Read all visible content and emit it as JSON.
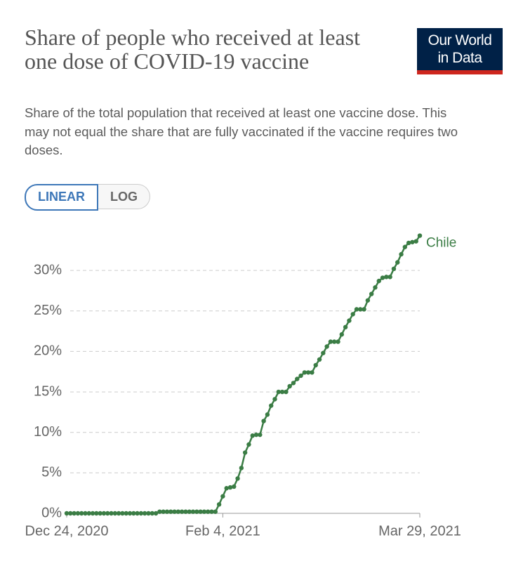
{
  "chart_data": {
    "type": "line",
    "title": "Share of people who received at least one dose of COVID-19 vaccine",
    "subtitle": "Share of the total population that received at least one vaccine dose. This may not equal the share that are fully vaccinated if the vaccine requires two doses.",
    "x": [
      "2020-12-24",
      "2020-12-25",
      "2020-12-26",
      "2020-12-27",
      "2020-12-28",
      "2020-12-29",
      "2020-12-30",
      "2020-12-31",
      "2021-01-01",
      "2021-01-02",
      "2021-01-03",
      "2021-01-04",
      "2021-01-05",
      "2021-01-06",
      "2021-01-07",
      "2021-01-08",
      "2021-01-09",
      "2021-01-10",
      "2021-01-11",
      "2021-01-12",
      "2021-01-13",
      "2021-01-14",
      "2021-01-15",
      "2021-01-16",
      "2021-01-17",
      "2021-01-18",
      "2021-01-19",
      "2021-01-20",
      "2021-01-21",
      "2021-01-22",
      "2021-01-23",
      "2021-01-24",
      "2021-01-25",
      "2021-01-26",
      "2021-01-27",
      "2021-01-28",
      "2021-01-29",
      "2021-01-30",
      "2021-01-31",
      "2021-02-01",
      "2021-02-02",
      "2021-02-03",
      "2021-02-04",
      "2021-02-05",
      "2021-02-06",
      "2021-02-07",
      "2021-02-08",
      "2021-02-09",
      "2021-02-10",
      "2021-02-11",
      "2021-02-12",
      "2021-02-13",
      "2021-02-14",
      "2021-02-15",
      "2021-02-16",
      "2021-02-17",
      "2021-02-18",
      "2021-02-19",
      "2021-02-20",
      "2021-02-21",
      "2021-02-22",
      "2021-02-23",
      "2021-02-24",
      "2021-02-25",
      "2021-02-26",
      "2021-02-27",
      "2021-02-28",
      "2021-03-01",
      "2021-03-02",
      "2021-03-03",
      "2021-03-04",
      "2021-03-05",
      "2021-03-06",
      "2021-03-07",
      "2021-03-08",
      "2021-03-09",
      "2021-03-10",
      "2021-03-11",
      "2021-03-12",
      "2021-03-13",
      "2021-03-14",
      "2021-03-15",
      "2021-03-16",
      "2021-03-17",
      "2021-03-18",
      "2021-03-19",
      "2021-03-20",
      "2021-03-21",
      "2021-03-22",
      "2021-03-23",
      "2021-03-24",
      "2021-03-25",
      "2021-03-26",
      "2021-03-27",
      "2021-03-28",
      "2021-03-29"
    ],
    "series": [
      {
        "name": "Chile",
        "color": "#3b7d45",
        "values": [
          0,
          0,
          0,
          0,
          0,
          0,
          0,
          0,
          0,
          0,
          0,
          0,
          0,
          0,
          0,
          0,
          0,
          0,
          0,
          0,
          0,
          0,
          0,
          0,
          0,
          0.2,
          0.2,
          0.2,
          0.2,
          0.2,
          0.2,
          0.2,
          0.2,
          0.2,
          0.2,
          0.2,
          0.2,
          0.2,
          0.2,
          0.2,
          0.2,
          1.1,
          2.1,
          3.1,
          3.2,
          3.3,
          4.3,
          5.6,
          7.5,
          8.5,
          9.6,
          9.7,
          9.7,
          11.4,
          12.2,
          13.3,
          14.1,
          15.0,
          15.0,
          15.0,
          15.7,
          16.1,
          16.6,
          17.0,
          17.4,
          17.4,
          17.4,
          18.3,
          19.0,
          19.8,
          20.6,
          21.2,
          21.2,
          21.2,
          22.1,
          23.0,
          23.8,
          24.6,
          25.2,
          25.2,
          25.2,
          26.3,
          27.1,
          27.9,
          28.7,
          29.1,
          29.2,
          29.2,
          30.2,
          31.0,
          32.0,
          32.9,
          33.4,
          33.5,
          33.6,
          34.3
        ]
      }
    ],
    "xlim": [
      "2020-12-24",
      "2021-03-29"
    ],
    "xticks": [
      {
        "value": "2020-12-24",
        "label": "Dec 24, 2020"
      },
      {
        "value": "2021-02-04",
        "label": "Feb 4, 2021"
      },
      {
        "value": "2021-03-29",
        "label": "Mar 29, 2021"
      }
    ],
    "ylim": [
      0,
      35
    ],
    "yticks": [
      {
        "value": 0,
        "label": "0%"
      },
      {
        "value": 5,
        "label": "5%"
      },
      {
        "value": 10,
        "label": "10%"
      },
      {
        "value": 15,
        "label": "15%"
      },
      {
        "value": 20,
        "label": "20%"
      },
      {
        "value": 25,
        "label": "25%"
      },
      {
        "value": 30,
        "label": "30%"
      }
    ],
    "grid": true
  },
  "logo": [
    "Our World",
    "in Data"
  ],
  "controls": [
    "LINEAR",
    "LOG"
  ]
}
